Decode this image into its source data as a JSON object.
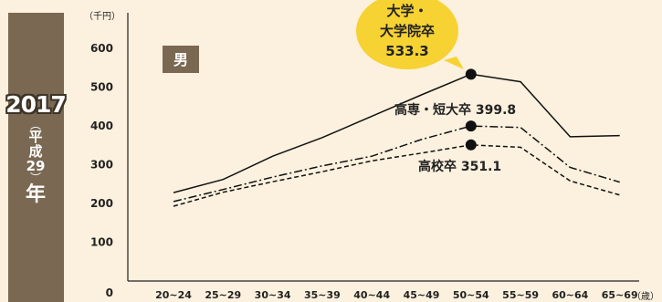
{
  "sidebar": {
    "year": "2017",
    "era_open": "︵",
    "era_line1": "平",
    "era_line2": "成",
    "era_line3": "29",
    "era_close": "︶",
    "nen": "年"
  },
  "chart_data": {
    "type": "line",
    "unit_label": "（千円）",
    "x_unit_label": "（歳）",
    "badge": "男",
    "categories": [
      "20~24",
      "25~29",
      "30~34",
      "35~39",
      "40~44",
      "45~49",
      "50~54",
      "55~59",
      "60~64",
      "65~69"
    ],
    "yticks": [
      0,
      100,
      200,
      300,
      400,
      500,
      600
    ],
    "ylim": [
      0,
      620
    ],
    "grid": false,
    "series": [
      {
        "key": "univ",
        "style": "solid",
        "values": [
          228,
          262,
          322,
          370,
          425,
          480,
          533.3,
          514,
          372,
          375
        ]
      },
      {
        "key": "junior",
        "style": "dashdot",
        "values": [
          205,
          236,
          268,
          297,
          322,
          365,
          399.8,
          396,
          293,
          255
        ]
      },
      {
        "key": "high",
        "style": "dashed",
        "values": [
          193,
          229,
          256,
          282,
          310,
          330,
          351.1,
          345,
          258,
          222
        ]
      }
    ],
    "markers": [
      {
        "series": "univ",
        "category": "50~54",
        "value": 533.3
      },
      {
        "series": "junior",
        "category": "50~54",
        "value": 399.8
      },
      {
        "series": "high",
        "category": "50~54",
        "value": 351.1
      }
    ],
    "callout": {
      "line1": "大学・",
      "line2": "大学院卒",
      "value": "533.3",
      "color": "#f6d233"
    },
    "labels": {
      "junior": "高専・短大卒 399.8",
      "high": "高校卒 351.1"
    }
  }
}
